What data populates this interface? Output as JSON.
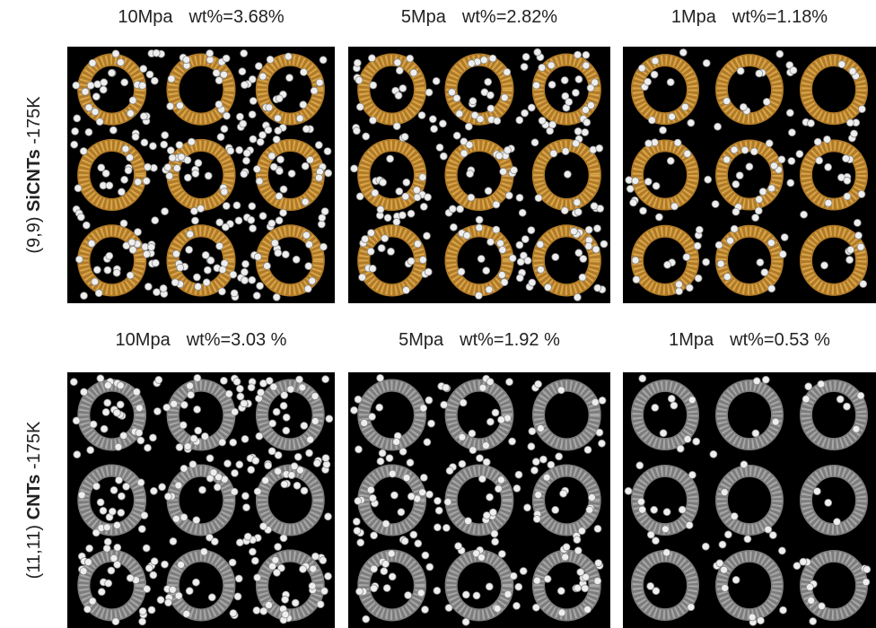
{
  "rows": [
    {
      "label": {
        "prefix": "(9,9)",
        "bold": "SiCNTs",
        "suffix": "-175K"
      },
      "panels": [
        {
          "pressure": "10Mpa",
          "wt": "wt%=3.68%"
        },
        {
          "pressure": "5Mpa",
          "wt": "wt%=2.82%"
        },
        {
          "pressure": "1Mpa",
          "wt": "wt%=1.18%"
        }
      ]
    },
    {
      "label": {
        "prefix": "(11,11)",
        "bold": "CNTs",
        "suffix": "-175K"
      },
      "panels": [
        {
          "pressure": "10Mpa",
          "wt": "wt%=3.03 %"
        },
        {
          "pressure": "5Mpa",
          "wt": "wt%=1.92 %"
        },
        {
          "pressure": "1Mpa",
          "wt": "wt%=0.53 %"
        }
      ]
    }
  ]
}
